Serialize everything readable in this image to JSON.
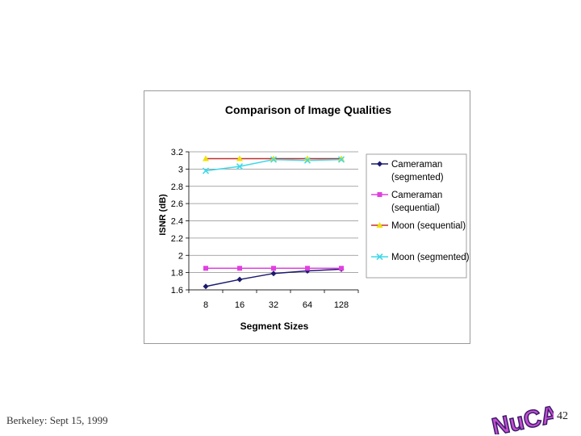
{
  "footer": {
    "text": "Berkeley: Sept 15, 1999",
    "page_number": "42"
  },
  "logo": {
    "text": "NuCAD",
    "fill": "#c64fd0",
    "stroke": "#3a1a6a"
  },
  "chart_data": {
    "type": "line",
    "title": "Comparison of Image Qualities",
    "xlabel": "Segment Sizes",
    "ylabel": "ISNR (dB)",
    "categories": [
      "8",
      "16",
      "32",
      "64",
      "128"
    ],
    "ylim": [
      1.6,
      3.2
    ],
    "yticks": [
      1.6,
      1.8,
      2.0,
      2.2,
      2.4,
      2.6,
      2.8,
      3.0,
      3.2
    ],
    "ytick_labels": [
      "1.6",
      "1.8",
      "2",
      "2.2",
      "2.4",
      "2.6",
      "2.8",
      "3",
      "3.2"
    ],
    "grid": true,
    "legend_position": "right",
    "series": [
      {
        "name": "Cameraman (segmented)",
        "legend_lines": [
          "Cameraman",
          "(segmented)"
        ],
        "values": [
          1.64,
          1.72,
          1.79,
          1.82,
          1.84
        ],
        "line_color": "#1a1a6e",
        "marker": "diamond",
        "marker_color": "#1a1a6e"
      },
      {
        "name": "Cameraman (sequential)",
        "legend_lines": [
          "Cameraman",
          "(sequential)"
        ],
        "values": [
          1.85,
          1.85,
          1.85,
          1.85,
          1.85
        ],
        "line_color": "#e040e0",
        "marker": "square",
        "marker_color": "#e040e0"
      },
      {
        "name": "Moon (sequential)",
        "legend_lines": [
          "Moon (sequential)"
        ],
        "values": [
          3.12,
          3.12,
          3.12,
          3.12,
          3.12
        ],
        "line_color": "#c03030",
        "marker": "triangle",
        "marker_color": "#f0e000"
      },
      {
        "name": "Moon (segmented)",
        "legend_lines": [
          "Moon (segmented)"
        ],
        "values": [
          2.98,
          3.03,
          3.11,
          3.1,
          3.11
        ],
        "line_color": "#40d8e8",
        "marker": "x",
        "marker_color": "#40d8e8"
      }
    ]
  }
}
